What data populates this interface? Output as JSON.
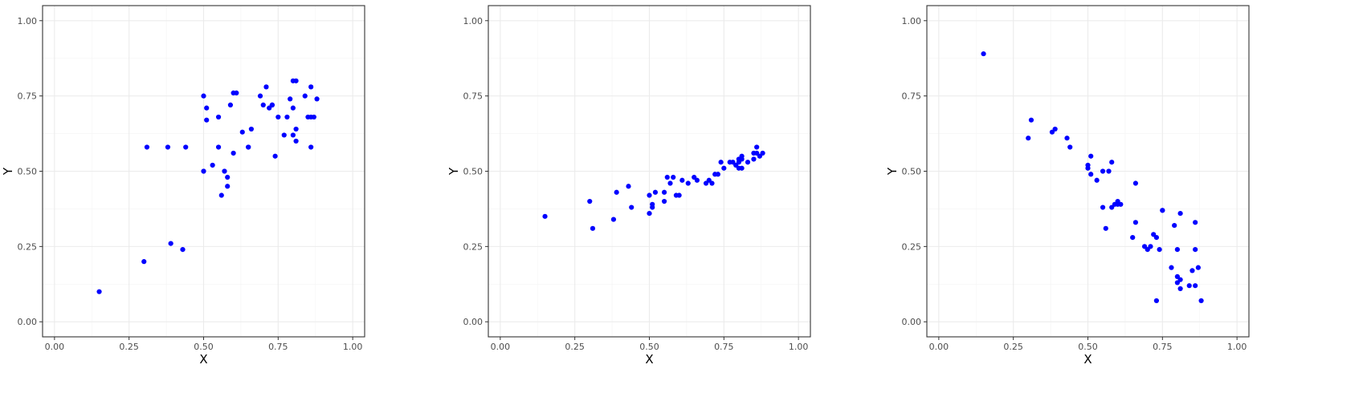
{
  "chart_data": [
    {
      "type": "scatter",
      "xlabel": "X",
      "ylabel": "Y",
      "xlim": [
        -0.04,
        1.04
      ],
      "ylim": [
        -0.05,
        1.05
      ],
      "xticks": [
        "0.00",
        "0.25",
        "0.50",
        "0.75",
        "1.00"
      ],
      "yticks": [
        "0.00",
        "0.25",
        "0.50",
        "0.75",
        "1.00"
      ],
      "grid": true,
      "point_color": "#0000ff",
      "x": [
        0.15,
        0.3,
        0.31,
        0.38,
        0.39,
        0.43,
        0.44,
        0.5,
        0.5,
        0.51,
        0.51,
        0.53,
        0.55,
        0.55,
        0.56,
        0.57,
        0.58,
        0.58,
        0.59,
        0.6,
        0.6,
        0.61,
        0.63,
        0.65,
        0.65,
        0.66,
        0.69,
        0.7,
        0.71,
        0.72,
        0.73,
        0.73,
        0.74,
        0.75,
        0.77,
        0.78,
        0.79,
        0.8,
        0.8,
        0.8,
        0.81,
        0.81,
        0.81,
        0.84,
        0.85,
        0.86,
        0.86,
        0.86,
        0.87,
        0.88
      ],
      "y": [
        0.1,
        0.2,
        0.58,
        0.58,
        0.26,
        0.24,
        0.58,
        0.5,
        0.75,
        0.71,
        0.67,
        0.52,
        0.68,
        0.58,
        0.42,
        0.5,
        0.48,
        0.45,
        0.72,
        0.56,
        0.76,
        0.76,
        0.63,
        0.58,
        0.58,
        0.64,
        0.75,
        0.72,
        0.78,
        0.71,
        0.72,
        0.72,
        0.55,
        0.68,
        0.62,
        0.68,
        0.74,
        0.71,
        0.62,
        0.8,
        0.64,
        0.6,
        0.8,
        0.75,
        0.68,
        0.78,
        0.68,
        0.58,
        0.68,
        0.74
      ]
    },
    {
      "type": "scatter",
      "xlabel": "X",
      "ylabel": "Y",
      "xlim": [
        -0.04,
        1.04
      ],
      "ylim": [
        -0.05,
        1.05
      ],
      "xticks": [
        "0.00",
        "0.25",
        "0.50",
        "0.75",
        "1.00"
      ],
      "yticks": [
        "0.00",
        "0.25",
        "0.50",
        "0.75",
        "1.00"
      ],
      "grid": true,
      "point_color": "#0000ff",
      "x": [
        0.15,
        0.3,
        0.31,
        0.38,
        0.39,
        0.43,
        0.44,
        0.5,
        0.5,
        0.51,
        0.51,
        0.52,
        0.55,
        0.55,
        0.56,
        0.57,
        0.58,
        0.59,
        0.6,
        0.61,
        0.63,
        0.65,
        0.66,
        0.69,
        0.7,
        0.71,
        0.72,
        0.73,
        0.74,
        0.75,
        0.77,
        0.78,
        0.79,
        0.8,
        0.8,
        0.8,
        0.81,
        0.81,
        0.81,
        0.83,
        0.85,
        0.85,
        0.86,
        0.86,
        0.87,
        0.88
      ],
      "y": [
        0.35,
        0.4,
        0.31,
        0.34,
        0.43,
        0.45,
        0.38,
        0.36,
        0.42,
        0.38,
        0.39,
        0.43,
        0.4,
        0.43,
        0.48,
        0.46,
        0.48,
        0.42,
        0.42,
        0.47,
        0.46,
        0.48,
        0.47,
        0.46,
        0.47,
        0.46,
        0.49,
        0.49,
        0.53,
        0.51,
        0.53,
        0.53,
        0.52,
        0.51,
        0.54,
        0.53,
        0.55,
        0.51,
        0.54,
        0.53,
        0.56,
        0.54,
        0.58,
        0.56,
        0.55,
        0.56
      ]
    },
    {
      "type": "scatter",
      "xlabel": "X",
      "ylabel": "Y",
      "xlim": [
        -0.04,
        1.04
      ],
      "ylim": [
        -0.05,
        1.05
      ],
      "xticks": [
        "0.00",
        "0.25",
        "0.50",
        "0.75",
        "1.00"
      ],
      "yticks": [
        "0.00",
        "0.25",
        "0.50",
        "0.75",
        "1.00"
      ],
      "grid": true,
      "point_color": "#0000ff",
      "x": [
        0.15,
        0.3,
        0.31,
        0.38,
        0.39,
        0.43,
        0.44,
        0.5,
        0.5,
        0.51,
        0.51,
        0.53,
        0.55,
        0.55,
        0.56,
        0.57,
        0.58,
        0.58,
        0.59,
        0.6,
        0.6,
        0.61,
        0.65,
        0.66,
        0.66,
        0.69,
        0.7,
        0.71,
        0.72,
        0.73,
        0.73,
        0.74,
        0.75,
        0.75,
        0.78,
        0.79,
        0.8,
        0.8,
        0.8,
        0.81,
        0.81,
        0.81,
        0.84,
        0.85,
        0.86,
        0.86,
        0.86,
        0.87,
        0.88
      ],
      "y": [
        0.89,
        0.61,
        0.67,
        0.63,
        0.64,
        0.61,
        0.58,
        0.52,
        0.51,
        0.49,
        0.55,
        0.47,
        0.38,
        0.5,
        0.31,
        0.5,
        0.38,
        0.53,
        0.39,
        0.4,
        0.39,
        0.39,
        0.28,
        0.33,
        0.46,
        0.25,
        0.24,
        0.25,
        0.29,
        0.07,
        0.28,
        0.24,
        0.37,
        0.37,
        0.18,
        0.32,
        0.13,
        0.15,
        0.24,
        0.11,
        0.36,
        0.14,
        0.12,
        0.17,
        0.24,
        0.12,
        0.33,
        0.18,
        0.07
      ]
    }
  ]
}
